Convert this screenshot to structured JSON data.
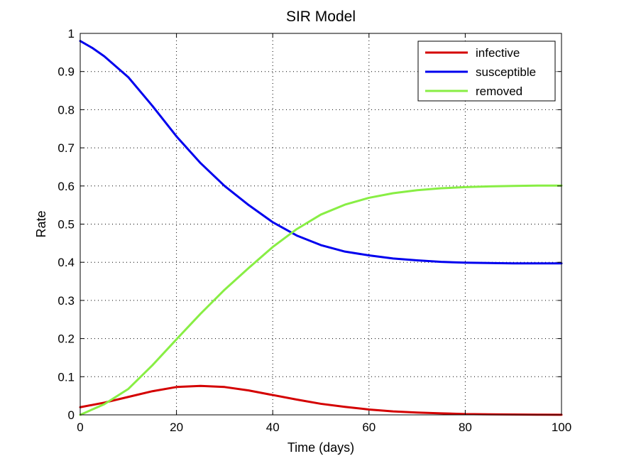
{
  "chart_data": {
    "type": "line",
    "title": "SIR Model",
    "xlabel": "Time (days)",
    "ylabel": "Rate",
    "xlim": [
      0,
      100
    ],
    "ylim": [
      0,
      1
    ],
    "xticks": [
      0,
      20,
      40,
      60,
      80,
      100
    ],
    "yticks": [
      0,
      0.1,
      0.2,
      0.3,
      0.4,
      0.5,
      0.6,
      0.7,
      0.8,
      0.9,
      1
    ],
    "ytick_labels": [
      "0",
      "0.1",
      "0.2",
      "0.3",
      "0.4",
      "0.5",
      "0.6",
      "0.7",
      "0.8",
      "0.9",
      "1"
    ],
    "xtick_labels": [
      "0",
      "20",
      "40",
      "60",
      "80",
      "100"
    ],
    "grid": true,
    "legend_position": "top-right",
    "series": [
      {
        "name": "infective",
        "color": "#d40000",
        "x": [
          0,
          5,
          10,
          15,
          20,
          25,
          30,
          35,
          40,
          45,
          50,
          55,
          60,
          65,
          70,
          75,
          80,
          85,
          90,
          95,
          100
        ],
        "y": [
          0.02,
          0.032,
          0.047,
          0.062,
          0.073,
          0.076,
          0.073,
          0.064,
          0.052,
          0.04,
          0.029,
          0.021,
          0.014,
          0.009,
          0.006,
          0.004,
          0.002,
          0.0015,
          0.001,
          0.0005,
          0.0003
        ]
      },
      {
        "name": "susceptible",
        "color": "#0000ee",
        "x": [
          0,
          2.5,
          5,
          10,
          15,
          20,
          25,
          30,
          35,
          40,
          45,
          50,
          55,
          60,
          65,
          70,
          75,
          80,
          85,
          90,
          95,
          100
        ],
        "y": [
          0.98,
          0.962,
          0.94,
          0.885,
          0.81,
          0.73,
          0.66,
          0.6,
          0.55,
          0.505,
          0.47,
          0.445,
          0.428,
          0.418,
          0.41,
          0.405,
          0.401,
          0.399,
          0.398,
          0.397,
          0.397,
          0.397
        ]
      },
      {
        "name": "removed",
        "color": "#88ee44",
        "x": [
          0,
          5,
          10,
          15,
          20,
          25,
          30,
          35,
          40,
          45,
          50,
          55,
          60,
          65,
          70,
          75,
          80,
          85,
          90,
          95,
          100
        ],
        "y": [
          0.0,
          0.028,
          0.068,
          0.13,
          0.198,
          0.265,
          0.328,
          0.385,
          0.44,
          0.487,
          0.525,
          0.551,
          0.569,
          0.581,
          0.589,
          0.594,
          0.597,
          0.599,
          0.6,
          0.601,
          0.601
        ]
      }
    ]
  }
}
